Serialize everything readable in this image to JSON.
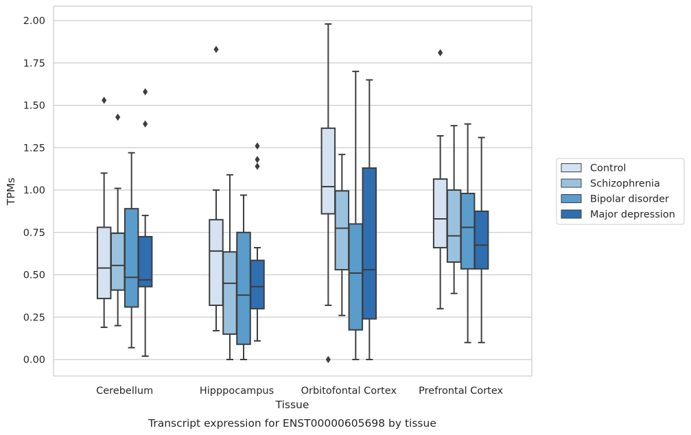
{
  "caption": "Transcript expression for ENST00000605698 by tissue",
  "chart_data": {
    "type": "boxplot",
    "title": "",
    "xlabel": "Tissue",
    "ylabel": "TPMs",
    "ylim": [
      -0.1,
      2.08
    ],
    "yticks": [
      0.0,
      0.25,
      0.5,
      0.75,
      1.0,
      1.25,
      1.5,
      1.75,
      2.0
    ],
    "ytick_labels": [
      "0.00",
      "0.25",
      "0.50",
      "0.75",
      "1.00",
      "1.25",
      "1.50",
      "1.75",
      "2.00"
    ],
    "grid": "horizontal",
    "legend_position": "right",
    "categories": [
      "Cerebellum",
      "Hipppocampus",
      "Orbitofontal Cortex",
      "Prefrontal Cortex"
    ],
    "series": [
      {
        "name": "Control",
        "color": "#d4e2f1",
        "boxes": [
          {
            "whisker_low": 0.19,
            "q1": 0.36,
            "median": 0.54,
            "q3": 0.78,
            "whisker_high": 1.1,
            "outliers": [
              1.53
            ]
          },
          {
            "whisker_low": 0.17,
            "q1": 0.32,
            "median": 0.64,
            "q3": 0.825,
            "whisker_high": 1.0,
            "outliers": [
              1.83
            ]
          },
          {
            "whisker_low": 0.32,
            "q1": 0.86,
            "median": 1.02,
            "q3": 1.365,
            "whisker_high": 1.98,
            "outliers": [
              0.0
            ]
          },
          {
            "whisker_low": 0.3,
            "q1": 0.66,
            "median": 0.83,
            "q3": 1.065,
            "whisker_high": 1.32,
            "outliers": [
              1.81
            ]
          }
        ]
      },
      {
        "name": "Schizophrenia",
        "color": "#9ac2de",
        "boxes": [
          {
            "whisker_low": 0.2,
            "q1": 0.41,
            "median": 0.555,
            "q3": 0.745,
            "whisker_high": 1.01,
            "outliers": [
              1.43
            ]
          },
          {
            "whisker_low": 0.0,
            "q1": 0.15,
            "median": 0.45,
            "q3": 0.635,
            "whisker_high": 1.09,
            "outliers": []
          },
          {
            "whisker_low": 0.26,
            "q1": 0.53,
            "median": 0.775,
            "q3": 0.995,
            "whisker_high": 1.21,
            "outliers": []
          },
          {
            "whisker_low": 0.39,
            "q1": 0.575,
            "median": 0.73,
            "q3": 1.0,
            "whisker_high": 1.38,
            "outliers": []
          }
        ]
      },
      {
        "name": "Bipolar disorder",
        "color": "#5a9ccb",
        "boxes": [
          {
            "whisker_low": 0.07,
            "q1": 0.31,
            "median": 0.485,
            "q3": 0.89,
            "whisker_high": 1.22,
            "outliers": []
          },
          {
            "whisker_low": 0.0,
            "q1": 0.09,
            "median": 0.38,
            "q3": 0.75,
            "whisker_high": 0.97,
            "outliers": []
          },
          {
            "whisker_low": 0.0,
            "q1": 0.175,
            "median": 0.51,
            "q3": 0.8,
            "whisker_high": 1.7,
            "outliers": []
          },
          {
            "whisker_low": 0.1,
            "q1": 0.535,
            "median": 0.78,
            "q3": 0.98,
            "whisker_high": 1.39,
            "outliers": []
          }
        ]
      },
      {
        "name": "Major depression",
        "color": "#2f6eb1",
        "boxes": [
          {
            "whisker_low": 0.02,
            "q1": 0.43,
            "median": 0.47,
            "q3": 0.725,
            "whisker_high": 0.85,
            "outliers": [
              1.39,
              1.58
            ]
          },
          {
            "whisker_low": 0.11,
            "q1": 0.3,
            "median": 0.43,
            "q3": 0.585,
            "whisker_high": 0.66,
            "outliers": [
              1.14,
              1.18,
              1.26
            ]
          },
          {
            "whisker_low": 0.0,
            "q1": 0.24,
            "median": 0.53,
            "q3": 1.13,
            "whisker_high": 1.65,
            "outliers": []
          },
          {
            "whisker_low": 0.1,
            "q1": 0.535,
            "median": 0.675,
            "q3": 0.875,
            "whisker_high": 1.31,
            "outliers": []
          }
        ]
      }
    ]
  }
}
